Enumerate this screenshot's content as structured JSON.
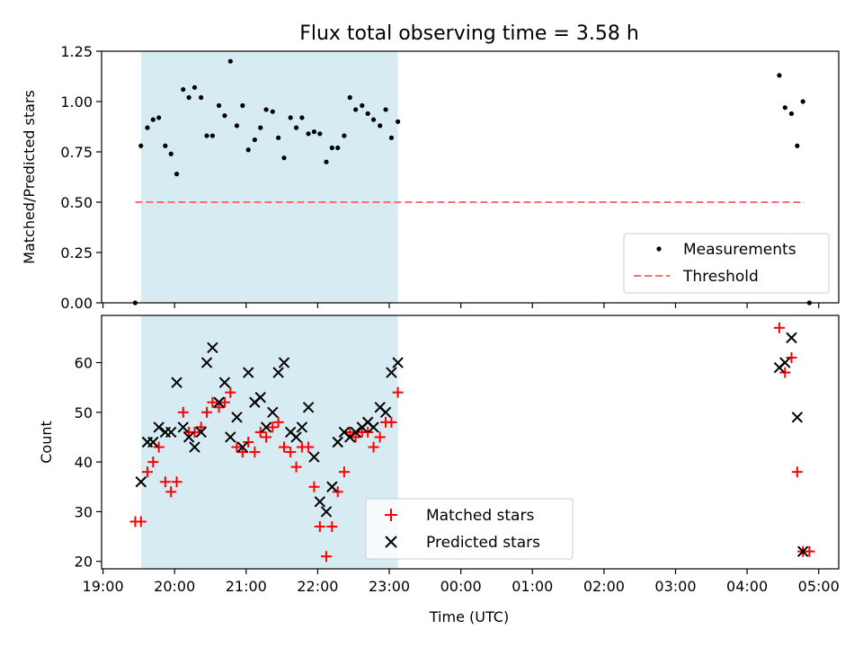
{
  "title": "Flux total observing time = 3.58 h",
  "colors": {
    "span": "#add8e6",
    "measurement": "#000000",
    "threshold": "#ff6e6e",
    "matched": "#ff0000",
    "predicted": "#000000"
  },
  "chart_data": [
    {
      "type": "scatter",
      "ylabel": "Matched/Predicted stars",
      "ylim": [
        0,
        1.25
      ],
      "yticks": [
        "0.00",
        "0.25",
        "0.50",
        "0.75",
        "1.00",
        "1.25"
      ],
      "xlim_hours": [
        18.98,
        29.28
      ],
      "shaded_span_hours": [
        19.53,
        23.12
      ],
      "legend_position": "lower-right",
      "legend": {
        "measurements": "Measurements",
        "threshold": "Threshold"
      },
      "threshold": {
        "y": 0.5,
        "x_hours": [
          19.45,
          28.8
        ]
      },
      "series": [
        {
          "name": "Measurements",
          "x_hours": [
            19.45,
            19.53,
            19.62,
            19.7,
            19.78,
            19.87,
            19.95,
            20.03,
            20.12,
            20.2,
            20.28,
            20.37,
            20.45,
            20.53,
            20.62,
            20.7,
            20.78,
            20.87,
            20.95,
            21.03,
            21.12,
            21.2,
            21.28,
            21.37,
            21.45,
            21.53,
            21.62,
            21.7,
            21.78,
            21.87,
            21.95,
            22.03,
            22.12,
            22.2,
            22.28,
            22.37,
            22.45,
            22.53,
            22.62,
            22.7,
            22.78,
            22.87,
            22.95,
            23.03,
            23.12,
            28.45,
            28.53,
            28.62,
            28.7,
            28.78,
            28.87
          ],
          "values": [
            0.0,
            0.78,
            0.87,
            0.91,
            0.92,
            0.78,
            0.74,
            0.64,
            1.06,
            1.02,
            1.07,
            1.02,
            0.83,
            0.83,
            0.98,
            0.93,
            1.2,
            0.88,
            0.98,
            0.76,
            0.81,
            0.87,
            0.96,
            0.95,
            0.82,
            0.72,
            0.92,
            0.87,
            0.92,
            0.84,
            0.85,
            0.84,
            0.7,
            0.77,
            0.77,
            0.83,
            1.02,
            0.96,
            0.98,
            0.94,
            0.91,
            0.88,
            0.96,
            0.82,
            0.9,
            1.13,
            0.97,
            0.94,
            0.78,
            1.0,
            0.0
          ]
        }
      ]
    },
    {
      "type": "scatter",
      "xlabel": "Time (UTC)",
      "ylabel": "Count",
      "ylim": [
        18.5,
        69.5
      ],
      "yticks": [
        "20",
        "30",
        "40",
        "50",
        "60"
      ],
      "xlim_hours": [
        18.98,
        29.28
      ],
      "xticks": [
        "19:00",
        "20:00",
        "21:00",
        "22:00",
        "23:00",
        "00:00",
        "01:00",
        "02:00",
        "03:00",
        "04:00",
        "05:00"
      ],
      "shaded_span_hours": [
        19.53,
        23.12
      ],
      "legend_position": "lower-center",
      "series": [
        {
          "name": "Matched stars",
          "x_hours": [
            19.45,
            19.53,
            19.62,
            19.7,
            19.78,
            19.87,
            19.95,
            20.03,
            20.12,
            20.2,
            20.28,
            20.37,
            20.45,
            20.53,
            20.62,
            20.7,
            20.78,
            20.87,
            20.95,
            21.03,
            21.12,
            21.2,
            21.28,
            21.37,
            21.45,
            21.53,
            21.62,
            21.7,
            21.78,
            21.87,
            21.95,
            22.03,
            22.12,
            22.2,
            22.28,
            22.37,
            22.45,
            22.53,
            22.62,
            22.7,
            22.78,
            22.87,
            22.95,
            23.03,
            23.12,
            28.45,
            28.53,
            28.62,
            28.7,
            28.78,
            28.87
          ],
          "values": [
            28,
            28,
            38,
            40,
            43,
            36,
            34,
            36,
            50,
            46,
            46,
            47,
            50,
            52,
            51,
            52,
            54,
            43,
            42,
            44,
            42,
            46,
            45,
            47,
            48,
            43,
            42,
            39,
            43,
            43,
            35,
            27,
            21,
            27,
            34,
            38,
            46,
            45,
            46,
            46,
            43,
            45,
            48,
            48,
            54,
            67,
            58,
            61,
            38,
            22,
            22
          ]
        },
        {
          "name": "Predicted stars",
          "x_hours": [
            19.53,
            19.62,
            19.7,
            19.78,
            19.87,
            19.95,
            20.03,
            20.12,
            20.2,
            20.28,
            20.37,
            20.45,
            20.53,
            20.62,
            20.7,
            20.78,
            20.87,
            20.95,
            21.03,
            21.12,
            21.2,
            21.28,
            21.37,
            21.45,
            21.53,
            21.62,
            21.7,
            21.78,
            21.87,
            21.95,
            22.03,
            22.12,
            22.2,
            22.28,
            22.37,
            22.45,
            22.53,
            22.62,
            22.7,
            22.78,
            22.87,
            22.95,
            23.03,
            23.12,
            28.45,
            28.53,
            28.62,
            28.7,
            28.78
          ],
          "values": [
            36,
            44,
            44,
            47,
            46,
            46,
            56,
            47,
            45,
            43,
            46,
            60,
            63,
            52,
            56,
            45,
            49,
            43,
            58,
            52,
            53,
            47,
            50,
            58,
            60,
            46,
            45,
            47,
            51,
            41,
            32,
            30,
            35,
            44,
            46,
            45,
            46,
            47,
            48,
            47,
            51,
            50,
            58,
            60,
            59,
            60,
            65,
            49,
            22
          ]
        }
      ]
    }
  ]
}
